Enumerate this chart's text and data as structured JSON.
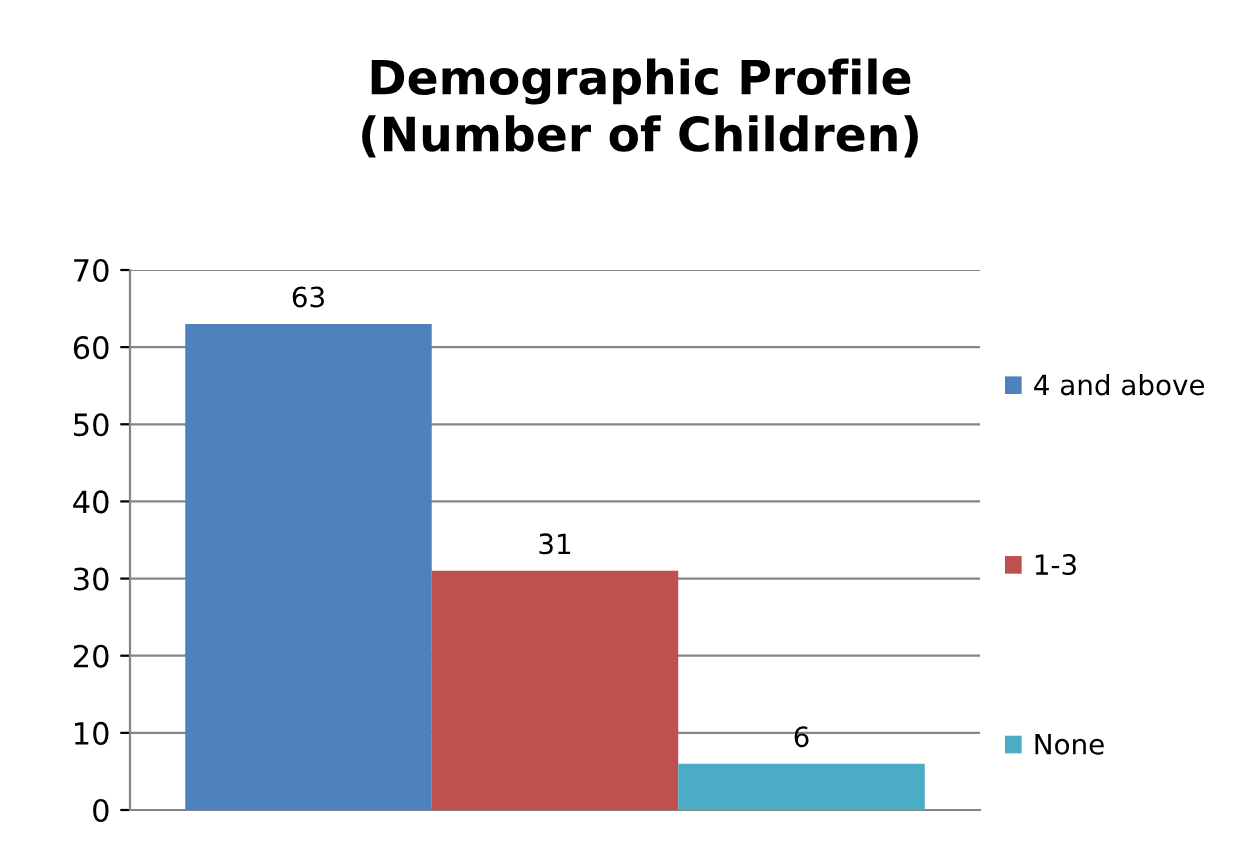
{
  "chart_data": {
    "type": "bar",
    "title": "Demographic Profile\n(Number of Children)",
    "categories": [
      null
    ],
    "series": [
      {
        "name": "4 and above",
        "color": "#4f81bd",
        "values": [
          63
        ]
      },
      {
        "name": "1-3",
        "color": "#c0504d",
        "values": [
          31
        ]
      },
      {
        "name": "None",
        "color": "#4bacc6",
        "values": [
          6
        ]
      }
    ],
    "ylim": [
      0,
      70
    ],
    "yticks": [
      0,
      10,
      20,
      30,
      40,
      50,
      60,
      70
    ],
    "grid": "y",
    "legend": "right",
    "data_labels": true
  }
}
